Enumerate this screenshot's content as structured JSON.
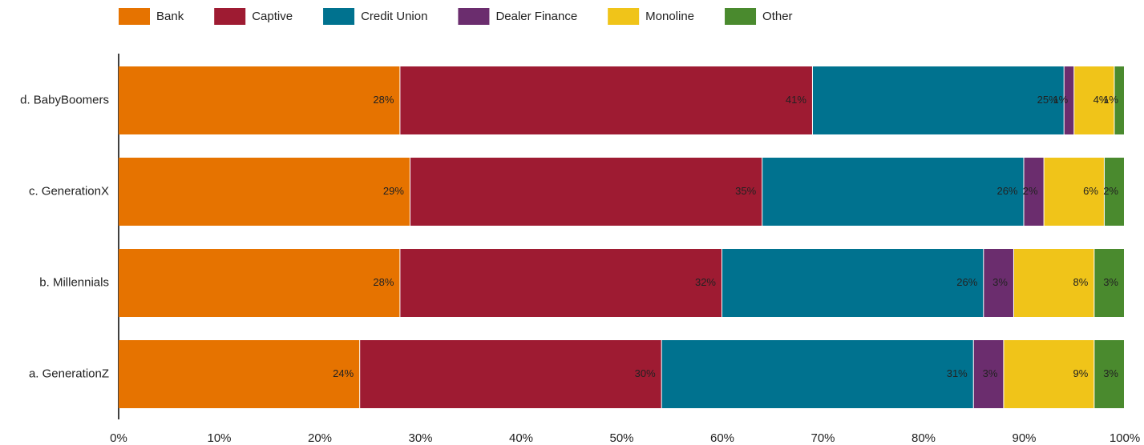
{
  "chart_data": {
    "type": "stacked_bar_horizontal",
    "categories": [
      "a. GenerationZ",
      "b. Millennials",
      "c. GenerationX",
      "d. BabyBoomers"
    ],
    "series": [
      {
        "name": "Bank",
        "color": "#e67300",
        "values": [
          24,
          28,
          29,
          28
        ],
        "value_labels": [
          "24%",
          "28%",
          "29%",
          "28%"
        ]
      },
      {
        "name": "Captive",
        "color": "#9e1b32",
        "values": [
          30,
          32,
          35,
          41
        ],
        "value_labels": [
          "30%",
          "32%",
          "35%",
          "41%"
        ]
      },
      {
        "name": "Credit Union",
        "color": "#00728f",
        "values": [
          31,
          26,
          26,
          25
        ],
        "value_labels": [
          "31%",
          "26%",
          "26%",
          "25%"
        ]
      },
      {
        "name": "Dealer Finance",
        "color": "#6b2d6e",
        "values": [
          3,
          3,
          2,
          1
        ],
        "value_labels": [
          "3%",
          "3%",
          "2%",
          "1%"
        ]
      },
      {
        "name": "Monoline",
        "color": "#f0c419",
        "values": [
          9,
          8,
          6,
          4
        ],
        "value_labels": [
          "9%",
          "8%",
          "6%",
          "4%"
        ]
      },
      {
        "name": "Other",
        "color": "#4a8a2e",
        "values": [
          3,
          3,
          2,
          1
        ],
        "value_labels": [
          "3%",
          "3%",
          "2%",
          "1%"
        ]
      }
    ],
    "xlim": [
      0,
      100
    ],
    "xticks": [
      {
        "value": 0,
        "label": "0%"
      },
      {
        "value": 10,
        "label": "10%"
      },
      {
        "value": 20,
        "label": "20%"
      },
      {
        "value": 30,
        "label": "30%"
      },
      {
        "value": 40,
        "label": "40%"
      },
      {
        "value": 50,
        "label": "50%"
      },
      {
        "value": 60,
        "label": "60%"
      },
      {
        "value": 70,
        "label": "70%"
      },
      {
        "value": 80,
        "label": "80%"
      },
      {
        "value": 90,
        "label": "90%"
      },
      {
        "value": 100,
        "label": "100%"
      }
    ],
    "legend": "top"
  }
}
